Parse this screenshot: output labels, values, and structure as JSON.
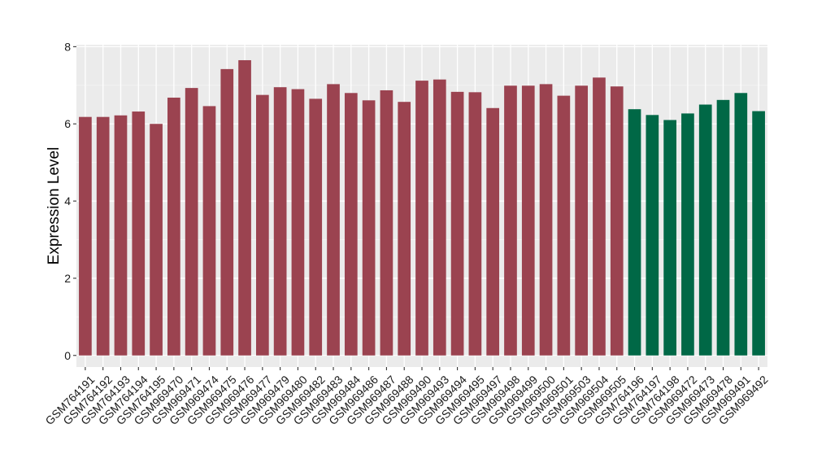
{
  "chart_data": {
    "type": "bar",
    "title": "",
    "xlabel": "",
    "ylabel": "Expression Level",
    "ylim": [
      -0.3,
      8.05
    ],
    "yticks": [
      0,
      2,
      4,
      6,
      8
    ],
    "grid": true,
    "background": "#ebebeb",
    "categories": [
      "GSM764191",
      "GSM764192",
      "GSM764193",
      "GSM764194",
      "GSM764195",
      "GSM969470",
      "GSM969471",
      "GSM969474",
      "GSM969475",
      "GSM969476",
      "GSM969477",
      "GSM969479",
      "GSM969480",
      "GSM969482",
      "GSM969483",
      "GSM969484",
      "GSM969486",
      "GSM969487",
      "GSM969488",
      "GSM969490",
      "GSM969493",
      "GSM969494",
      "GSM969495",
      "GSM969497",
      "GSM969498",
      "GSM969499",
      "GSM969500",
      "GSM969501",
      "GSM969503",
      "GSM969504",
      "GSM969505",
      "GSM764196",
      "GSM764197",
      "GSM764198",
      "GSM969472",
      "GSM969473",
      "GSM969478",
      "GSM969491",
      "GSM969492"
    ],
    "values": [
      6.18,
      6.18,
      6.22,
      6.32,
      6.0,
      6.68,
      6.93,
      6.46,
      7.42,
      7.65,
      6.75,
      6.95,
      6.9,
      6.65,
      7.03,
      6.8,
      6.61,
      6.87,
      6.57,
      7.12,
      7.15,
      6.83,
      6.82,
      6.41,
      6.99,
      6.99,
      7.03,
      6.73,
      6.99,
      7.2,
      6.97,
      6.38,
      6.23,
      6.1,
      6.27,
      6.5,
      6.62,
      6.8,
      6.33
    ],
    "groups": [
      "g1",
      "g1",
      "g1",
      "g1",
      "g1",
      "g1",
      "g1",
      "g1",
      "g1",
      "g1",
      "g1",
      "g1",
      "g1",
      "g1",
      "g1",
      "g1",
      "g1",
      "g1",
      "g1",
      "g1",
      "g1",
      "g1",
      "g1",
      "g1",
      "g1",
      "g1",
      "g1",
      "g1",
      "g1",
      "g1",
      "g1",
      "g2",
      "g2",
      "g2",
      "g2",
      "g2",
      "g2",
      "g2",
      "g2"
    ],
    "colors": {
      "g1": "#9b4350",
      "g2": "#006846"
    }
  }
}
